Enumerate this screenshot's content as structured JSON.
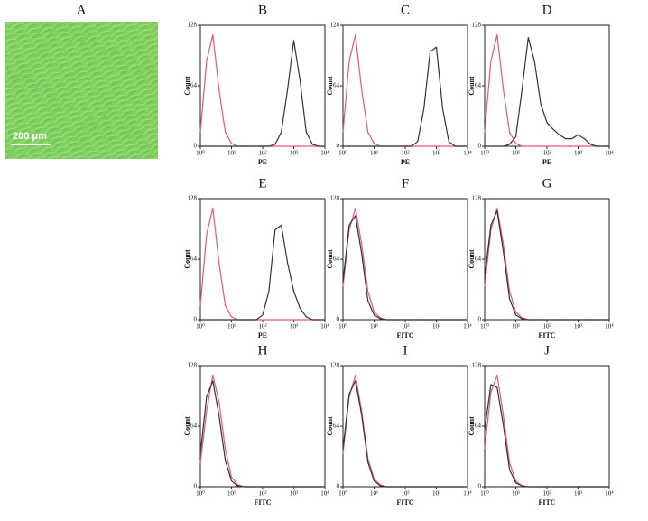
{
  "image_panel": {
    "label": "A",
    "scale_bar": "200 μm"
  },
  "chart_data": [
    {
      "type": "line",
      "title": "B",
      "xlabel": "PE",
      "ylabel": "Count",
      "log_x": true,
      "xlim": [
        1,
        10000
      ],
      "ylim": [
        0,
        128
      ],
      "yticks": [
        0,
        64,
        128
      ],
      "xticks": [
        {
          "value": 1,
          "label": "10⁰"
        },
        {
          "value": 10,
          "label": "10¹"
        },
        {
          "value": 100,
          "label": "10²"
        },
        {
          "value": 1000,
          "label": "10³"
        },
        {
          "value": 10000,
          "label": "10⁴"
        }
      ],
      "x": [
        1,
        1.58,
        2.51,
        3.98,
        6.31,
        10,
        15.8,
        25.1,
        39.8,
        63.1,
        100,
        158,
        251,
        398,
        631,
        1000,
        1585,
        2512,
        3981,
        6310,
        10000
      ],
      "series": [
        {
          "color": "#e8557a",
          "values": [
            15,
            90,
            118,
            60,
            15,
            3,
            0,
            0,
            0,
            0,
            0,
            0,
            0,
            0,
            0,
            0,
            0,
            0,
            0,
            0,
            0
          ]
        },
        {
          "color": "#333333",
          "values": [
            0,
            0,
            0,
            0,
            0,
            0,
            0,
            0,
            0,
            0,
            0,
            0,
            2,
            15,
            60,
            112,
            70,
            15,
            2,
            0,
            0
          ]
        }
      ]
    },
    {
      "type": "line",
      "title": "C",
      "xlabel": "PE",
      "ylabel": "Count",
      "log_x": true,
      "xlim": [
        1,
        10000
      ],
      "ylim": [
        0,
        128
      ],
      "yticks": [
        0,
        64,
        128
      ],
      "xticks": [
        {
          "value": 1,
          "label": "10⁰"
        },
        {
          "value": 10,
          "label": "10¹"
        },
        {
          "value": 100,
          "label": "10²"
        },
        {
          "value": 1000,
          "label": "10³"
        },
        {
          "value": 10000,
          "label": "10⁴"
        }
      ],
      "x": [
        1,
        1.58,
        2.51,
        3.98,
        6.31,
        10,
        15.8,
        25.1,
        39.8,
        63.1,
        100,
        158,
        251,
        398,
        631,
        1000,
        1585,
        2512,
        3981,
        6310,
        10000
      ],
      "series": [
        {
          "color": "#e8557a",
          "values": [
            15,
            90,
            118,
            60,
            15,
            3,
            0,
            0,
            0,
            0,
            0,
            0,
            0,
            0,
            0,
            0,
            0,
            0,
            0,
            0,
            0
          ]
        },
        {
          "color": "#333333",
          "values": [
            0,
            0,
            0,
            0,
            0,
            0,
            0,
            0,
            0,
            0,
            0,
            0,
            5,
            40,
            100,
            105,
            40,
            5,
            0,
            0,
            0
          ]
        }
      ]
    },
    {
      "type": "line",
      "title": "D",
      "xlabel": "PE",
      "ylabel": "Count",
      "log_x": true,
      "xlim": [
        1,
        10000
      ],
      "ylim": [
        0,
        128
      ],
      "yticks": [
        0,
        64,
        128
      ],
      "xticks": [
        {
          "value": 1,
          "label": "10⁰"
        },
        {
          "value": 10,
          "label": "10¹"
        },
        {
          "value": 100,
          "label": "10²"
        },
        {
          "value": 1000,
          "label": "10³"
        },
        {
          "value": 10000,
          "label": "10⁴"
        }
      ],
      "x": [
        1,
        1.58,
        2.51,
        3.98,
        6.31,
        10,
        15.8,
        25.1,
        39.8,
        63.1,
        100,
        158,
        251,
        398,
        631,
        1000,
        1585,
        2512,
        3981,
        6310,
        10000
      ],
      "series": [
        {
          "color": "#e8557a",
          "values": [
            15,
            90,
            118,
            60,
            15,
            3,
            0,
            0,
            0,
            0,
            0,
            0,
            0,
            0,
            0,
            0,
            0,
            0,
            0,
            0,
            0
          ]
        },
        {
          "color": "#333333",
          "values": [
            0,
            0,
            0,
            0,
            2,
            10,
            60,
            115,
            90,
            45,
            25,
            18,
            12,
            8,
            8,
            12,
            8,
            2,
            0,
            0,
            0
          ]
        }
      ]
    },
    {
      "type": "line",
      "title": "E",
      "xlabel": "PE",
      "ylabel": "Count",
      "log_x": true,
      "xlim": [
        1,
        10000
      ],
      "ylim": [
        0,
        128
      ],
      "yticks": [
        0,
        64,
        128
      ],
      "xticks": [
        {
          "value": 1,
          "label": "10⁰"
        },
        {
          "value": 10,
          "label": "10¹"
        },
        {
          "value": 100,
          "label": "10²"
        },
        {
          "value": 1000,
          "label": "10³"
        },
        {
          "value": 10000,
          "label": "10⁴"
        }
      ],
      "x": [
        1,
        1.58,
        2.51,
        3.98,
        6.31,
        10,
        15.8,
        25.1,
        39.8,
        63.1,
        100,
        158,
        251,
        398,
        631,
        1000,
        1585,
        2512,
        3981,
        6310,
        10000
      ],
      "series": [
        {
          "color": "#e8557a",
          "values": [
            15,
            90,
            118,
            60,
            15,
            3,
            0,
            0,
            0,
            0,
            0,
            0,
            0,
            0,
            0,
            0,
            0,
            0,
            0,
            0,
            0
          ]
        },
        {
          "color": "#333333",
          "values": [
            0,
            0,
            0,
            0,
            0,
            0,
            0,
            0,
            0,
            0,
            5,
            30,
            95,
            100,
            60,
            30,
            12,
            3,
            0,
            0,
            0
          ]
        }
      ]
    },
    {
      "type": "line",
      "title": "F",
      "xlabel": "FITC",
      "ylabel": "Count",
      "log_x": true,
      "xlim": [
        1,
        10000
      ],
      "ylim": [
        0,
        128
      ],
      "yticks": [
        0,
        64,
        128
      ],
      "xticks": [
        {
          "value": 1,
          "label": "10⁰"
        },
        {
          "value": 10,
          "label": "10¹"
        },
        {
          "value": 100,
          "label": "10²"
        },
        {
          "value": 1000,
          "label": "10³"
        },
        {
          "value": 10000,
          "label": "10⁴"
        }
      ],
      "x": [
        1,
        1.58,
        2.51,
        3.98,
        6.31,
        10,
        15.8,
        25.1,
        39.8,
        63.1,
        100,
        158,
        251,
        398,
        631,
        1000,
        1585,
        2512,
        3981,
        6310,
        10000
      ],
      "series": [
        {
          "color": "#e8557a",
          "values": [
            35,
            95,
            118,
            80,
            30,
            8,
            2,
            0,
            0,
            0,
            0,
            0,
            0,
            0,
            0,
            0,
            0,
            0,
            0,
            0,
            0
          ]
        },
        {
          "color": "#333333",
          "values": [
            40,
            100,
            110,
            70,
            20,
            5,
            1,
            0,
            0,
            0,
            0,
            0,
            0,
            0,
            0,
            0,
            0,
            0,
            0,
            0,
            0
          ]
        }
      ]
    },
    {
      "type": "line",
      "title": "G",
      "xlabel": "FITC",
      "ylabel": "Count",
      "log_x": true,
      "xlim": [
        1,
        10000
      ],
      "ylim": [
        0,
        128
      ],
      "yticks": [
        0,
        64,
        128
      ],
      "xticks": [
        {
          "value": 1,
          "label": "10⁰"
        },
        {
          "value": 10,
          "label": "10¹"
        },
        {
          "value": 100,
          "label": "10²"
        },
        {
          "value": 1000,
          "label": "10³"
        },
        {
          "value": 10000,
          "label": "10⁴"
        }
      ],
      "x": [
        1,
        1.58,
        2.51,
        3.98,
        6.31,
        10,
        15.8,
        25.1,
        39.8,
        63.1,
        100,
        158,
        251,
        398,
        631,
        1000,
        1585,
        2512,
        3981,
        6310,
        10000
      ],
      "series": [
        {
          "color": "#e8557a",
          "values": [
            35,
            95,
            118,
            80,
            30,
            8,
            2,
            0,
            0,
            0,
            0,
            0,
            0,
            0,
            0,
            0,
            0,
            0,
            0,
            0,
            0
          ]
        },
        {
          "color": "#333333",
          "values": [
            45,
            100,
            115,
            72,
            22,
            5,
            1,
            0,
            0,
            0,
            0,
            0,
            0,
            0,
            0,
            0,
            0,
            0,
            0,
            0,
            0
          ]
        }
      ]
    },
    {
      "type": "line",
      "title": "H",
      "xlabel": "FITC",
      "ylabel": "Count",
      "log_x": true,
      "xlim": [
        1,
        10000
      ],
      "ylim": [
        0,
        128
      ],
      "yticks": [
        0,
        64,
        128
      ],
      "xticks": [
        {
          "value": 1,
          "label": "10⁰"
        },
        {
          "value": 10,
          "label": "10¹"
        },
        {
          "value": 100,
          "label": "10²"
        },
        {
          "value": 1000,
          "label": "10³"
        },
        {
          "value": 10000,
          "label": "10⁴"
        }
      ],
      "x": [
        1,
        1.58,
        2.51,
        3.98,
        6.31,
        10,
        15.8,
        25.1,
        39.8,
        63.1,
        100,
        158,
        251,
        398,
        631,
        1000,
        1585,
        2512,
        3981,
        6310,
        10000
      ],
      "series": [
        {
          "color": "#e8557a",
          "values": [
            25,
            80,
            118,
            90,
            40,
            10,
            2,
            0,
            0,
            0,
            0,
            0,
            0,
            0,
            0,
            0,
            0,
            0,
            0,
            0,
            0
          ]
        },
        {
          "color": "#333333",
          "values": [
            35,
            95,
            112,
            75,
            28,
            6,
            1,
            0,
            0,
            0,
            0,
            0,
            0,
            0,
            0,
            0,
            0,
            0,
            0,
            0,
            0
          ]
        }
      ]
    },
    {
      "type": "line",
      "title": "I",
      "xlabel": "FITC",
      "ylabel": "Count",
      "log_x": true,
      "xlim": [
        1,
        10000
      ],
      "ylim": [
        0,
        128
      ],
      "yticks": [
        0,
        64,
        128
      ],
      "xticks": [
        {
          "value": 1,
          "label": "10⁰"
        },
        {
          "value": 10,
          "label": "10¹"
        },
        {
          "value": 100,
          "label": "10²"
        },
        {
          "value": 1000,
          "label": "10³"
        },
        {
          "value": 10000,
          "label": "10⁴"
        }
      ],
      "x": [
        1,
        1.58,
        2.51,
        3.98,
        6.31,
        10,
        15.8,
        25.1,
        39.8,
        63.1,
        100,
        158,
        251,
        398,
        631,
        1000,
        1585,
        2512,
        3981,
        6310,
        10000
      ],
      "series": [
        {
          "color": "#e8557a",
          "values": [
            35,
            95,
            118,
            80,
            30,
            8,
            2,
            0,
            0,
            0,
            0,
            0,
            0,
            0,
            0,
            0,
            0,
            0,
            0,
            0,
            0
          ]
        },
        {
          "color": "#333333",
          "values": [
            40,
            98,
            112,
            76,
            26,
            6,
            1,
            0,
            0,
            0,
            0,
            0,
            0,
            0,
            0,
            0,
            0,
            0,
            0,
            0,
            0
          ]
        }
      ]
    },
    {
      "type": "line",
      "title": "J",
      "xlabel": "FITC",
      "ylabel": "Count",
      "log_x": true,
      "xlim": [
        1,
        10000
      ],
      "ylim": [
        0,
        128
      ],
      "yticks": [
        0,
        64,
        128
      ],
      "xticks": [
        {
          "value": 1,
          "label": "10⁰"
        },
        {
          "value": 10,
          "label": "10¹"
        },
        {
          "value": 100,
          "label": "10²"
        },
        {
          "value": 1000,
          "label": "10³"
        },
        {
          "value": 10000,
          "label": "10⁴"
        }
      ],
      "x": [
        1,
        1.58,
        2.51,
        3.98,
        6.31,
        10,
        15.8,
        25.1,
        39.8,
        63.1,
        100,
        158,
        251,
        398,
        631,
        1000,
        1585,
        2512,
        3981,
        6310,
        10000
      ],
      "series": [
        {
          "color": "#e8557a",
          "values": [
            40,
            100,
            118,
            75,
            25,
            6,
            1,
            0,
            0,
            0,
            0,
            0,
            0,
            0,
            0,
            0,
            0,
            0,
            0,
            0,
            0
          ]
        },
        {
          "color": "#333333",
          "values": [
            60,
            108,
            105,
            65,
            18,
            4,
            1,
            0,
            0,
            0,
            0,
            0,
            0,
            0,
            0,
            0,
            0,
            0,
            0,
            0,
            0
          ]
        }
      ]
    }
  ]
}
